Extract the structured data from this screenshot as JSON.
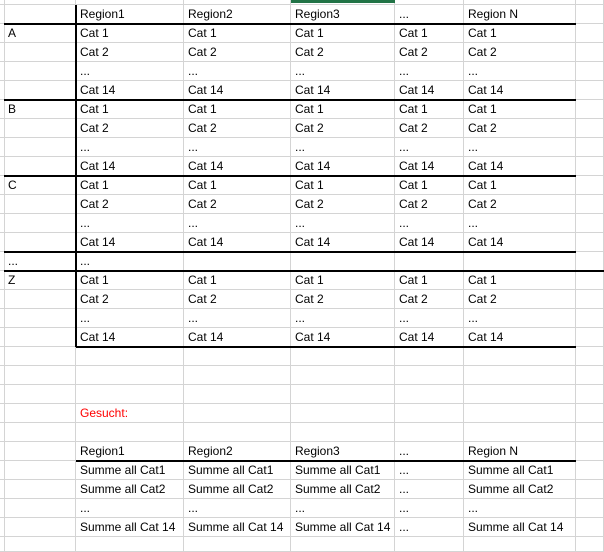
{
  "colors": {
    "gridline": "#d4d4d4",
    "thick_border": "#000000",
    "accent_green": "#217346",
    "gesucht_red": "#ff0000"
  },
  "gesucht_cell": {
    "row": 21,
    "col": 1
  },
  "grid": [
    [
      "",
      "Region1",
      "Region2",
      "Region3",
      "...",
      "Region N"
    ],
    [
      "A",
      "Cat 1",
      "Cat 1",
      "Cat 1",
      "Cat 1",
      "Cat 1"
    ],
    [
      "",
      "Cat 2",
      "Cat 2",
      "Cat 2",
      "Cat 2",
      "Cat 2"
    ],
    [
      "",
      "...",
      "...",
      "...",
      "...",
      "..."
    ],
    [
      "",
      "Cat 14",
      "Cat 14",
      "Cat 14",
      "Cat 14",
      "Cat 14"
    ],
    [
      "B",
      "Cat 1",
      "Cat 1",
      "Cat 1",
      "Cat 1",
      "Cat 1"
    ],
    [
      "",
      "Cat 2",
      "Cat 2",
      "Cat 2",
      "Cat 2",
      "Cat 2"
    ],
    [
      "",
      "...",
      "...",
      "...",
      "...",
      "..."
    ],
    [
      "",
      "Cat 14",
      "Cat 14",
      "Cat 14",
      "Cat 14",
      "Cat 14"
    ],
    [
      "C",
      "Cat 1",
      "Cat 1",
      "Cat 1",
      "Cat 1",
      "Cat 1"
    ],
    [
      "",
      "Cat 2",
      "Cat 2",
      "Cat 2",
      "Cat 2",
      "Cat 2"
    ],
    [
      "",
      "...",
      "...",
      "...",
      "...",
      "..."
    ],
    [
      "",
      "Cat 14",
      "Cat 14",
      "Cat 14",
      "Cat 14",
      "Cat 14"
    ],
    [
      "...",
      "...",
      "",
      "",
      "",
      ""
    ],
    [
      "Z",
      "Cat 1",
      "Cat 1",
      "Cat 1",
      "Cat 1",
      "Cat 1"
    ],
    [
      "",
      "Cat 2",
      "Cat 2",
      "Cat 2",
      "Cat 2",
      "Cat 2"
    ],
    [
      "",
      "...",
      "...",
      "...",
      "...",
      "..."
    ],
    [
      "",
      "Cat 14",
      "Cat 14",
      "Cat 14",
      "Cat 14",
      "Cat 14"
    ],
    [
      "",
      "",
      "",
      "",
      "",
      ""
    ],
    [
      "",
      "",
      "",
      "",
      "",
      ""
    ],
    [
      "",
      "",
      "",
      "",
      "",
      ""
    ],
    [
      "",
      "Gesucht:",
      "",
      "",
      "",
      ""
    ],
    [
      "",
      "",
      "",
      "",
      "",
      ""
    ],
    [
      "",
      "Region1",
      "Region2",
      "Region3",
      "...",
      "Region N"
    ],
    [
      "",
      "Summe all Cat1",
      "Summe all Cat1",
      "Summe all Cat1",
      "...",
      "Summe all Cat1"
    ],
    [
      "",
      "Summe all Cat2",
      "Summe all Cat2",
      "Summe all Cat2",
      "...",
      "Summe all Cat2"
    ],
    [
      "",
      "...",
      "...",
      "...",
      "...",
      "..."
    ],
    [
      "",
      "Summe all Cat 14",
      "Summe all Cat 14",
      "Summe all Cat 14",
      "...",
      "Summe all Cat 14"
    ]
  ]
}
